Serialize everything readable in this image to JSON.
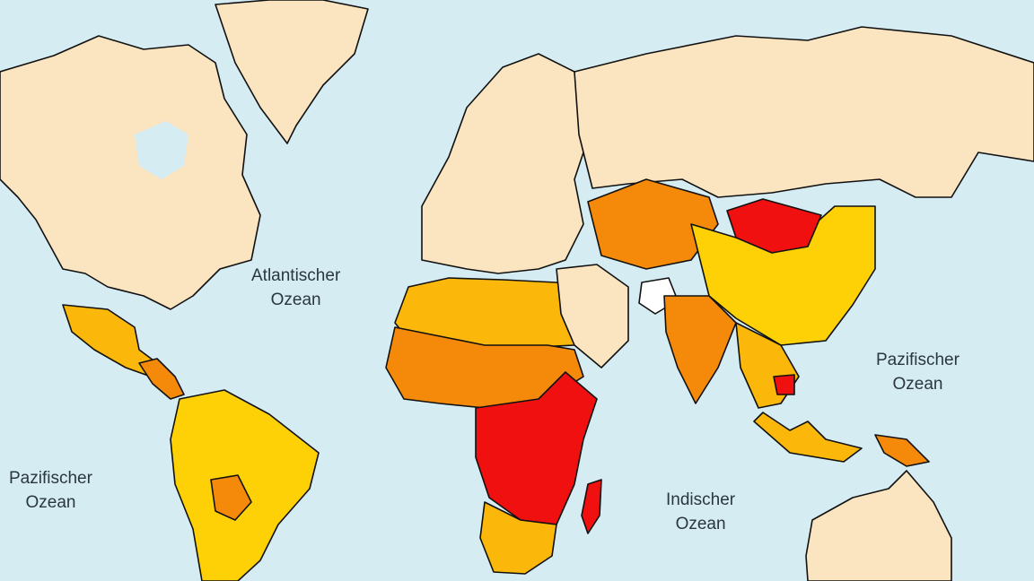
{
  "colors": {
    "ocean": "#d6ecf3",
    "level_0_no_data": "#ffffff",
    "level_1": "#fbe4c0",
    "level_2": "#fdd105",
    "level_3": "#fbb80a",
    "level_4": "#f58a0a",
    "level_5": "#f01010",
    "border": "#111111"
  },
  "ocean_labels": {
    "atlantic": {
      "line1": "Atlantischer",
      "line2": "Ozean"
    },
    "pacific_east": {
      "line1": "Pazifischer",
      "line2": "Ozean"
    },
    "indian": {
      "line1": "Indischer",
      "line2": "Ozean"
    },
    "pacific_west": {
      "line1": "Pazifischer",
      "line2": "Ozean"
    }
  },
  "regions": [
    {
      "name": "Nordamerika",
      "level": 1
    },
    {
      "name": "Grönland",
      "level": 1
    },
    {
      "name": "Mexiko",
      "level": 3
    },
    {
      "name": "Zentralamerika",
      "level": 4
    },
    {
      "name": "Südamerika",
      "level": 2
    },
    {
      "name": "Bolivien",
      "level": 4
    },
    {
      "name": "Europa",
      "level": 1
    },
    {
      "name": "Russland",
      "level": 1
    },
    {
      "name": "Nordafrika",
      "level": 3
    },
    {
      "name": "Westafrika",
      "level": 4
    },
    {
      "name": "Zentral- und Ostafrika",
      "level": 5
    },
    {
      "name": "Südliches Afrika",
      "level": 3
    },
    {
      "name": "Madagaskar",
      "level": 5
    },
    {
      "name": "Naher Osten",
      "level": 1
    },
    {
      "name": "Zentralasien",
      "level": 4
    },
    {
      "name": "Afghanistan",
      "level": 0
    },
    {
      "name": "Indien",
      "level": 4
    },
    {
      "name": "China",
      "level": 2
    },
    {
      "name": "Mongolei",
      "level": 5
    },
    {
      "name": "Südostasien",
      "level": 3
    },
    {
      "name": "Kambodscha",
      "level": 5
    },
    {
      "name": "Indonesien",
      "level": 3
    },
    {
      "name": "Papua-Neuguinea",
      "level": 4
    },
    {
      "name": "Australien",
      "level": 1
    }
  ]
}
